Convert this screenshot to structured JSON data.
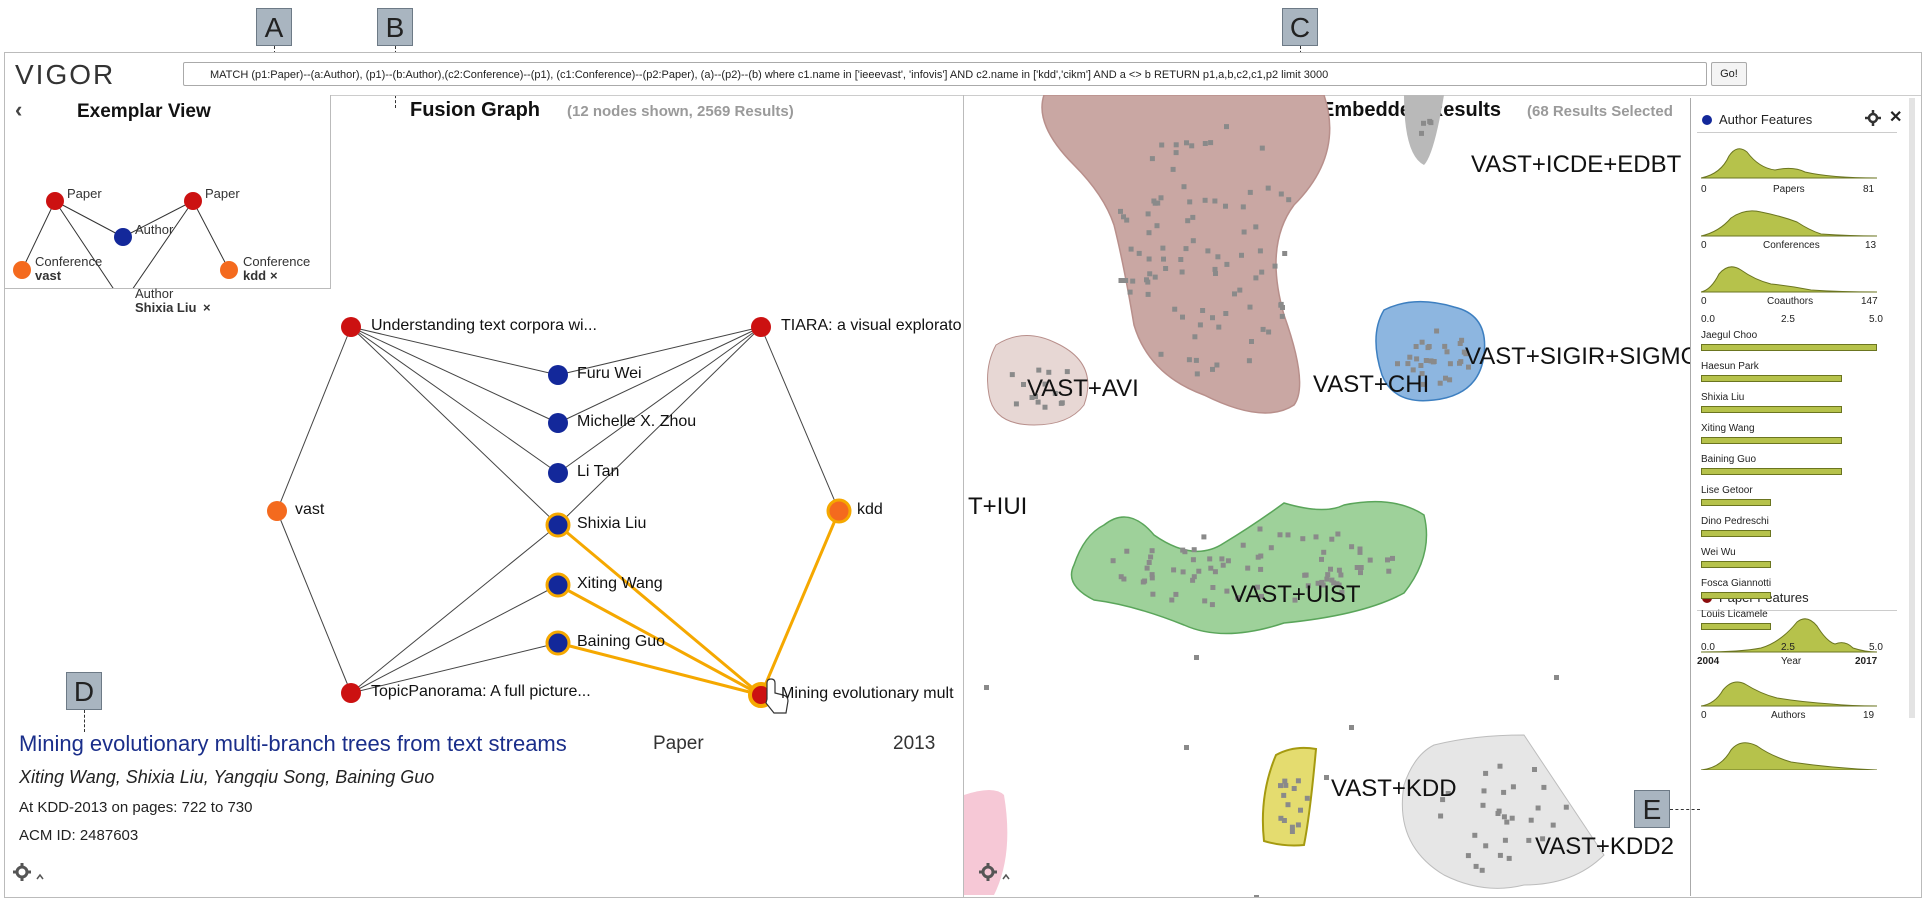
{
  "callouts": {
    "a": "A",
    "b": "B",
    "c": "C",
    "d": "D",
    "e": "E"
  },
  "app": {
    "logo": "VIGOR",
    "query": "MATCH (p1:Paper)--(a:Author), (p1)--(b:Author),(c2:Conference)--(p1), (c1:Conference)--(p2:Paper), (a)--(p2)--(b)  where c1.name in ['ieeevast', 'infovis'] AND c2.name in ['kdd','cikm'] AND a <> b  RETURN p1,a,b,c2,c1,p2 limit 3000",
    "go_label": "Go!"
  },
  "exemplar": {
    "back": "‹",
    "title": "Exemplar View",
    "labels": {
      "paper1": "Paper",
      "paper2": "Paper",
      "author1": "Author",
      "conf1_type": "Conference",
      "conf1_value": "vast",
      "conf2_type": "Conference",
      "conf2_value": "kdd",
      "author2_type": "Author",
      "author2_value": "Shixia Liu",
      "remove": "×"
    }
  },
  "fusion": {
    "title": "Fusion Graph",
    "subtitle": "(12 nodes shown, 2569 Results)",
    "nodes": {
      "p1": "Understanding text corpora wi...",
      "p2": "TIARA: a visual explorato",
      "p3": "TopicPanorama: A full picture...",
      "p4": "Mining evolutionary mult",
      "a1": "Furu Wei",
      "a2": "Michelle X. Zhou",
      "a3": "Li Tan",
      "a4": "Shixia Liu",
      "a5": "Xiting Wang",
      "a6": "Baining Guo",
      "c1": "vast",
      "c2": "kdd"
    }
  },
  "detail": {
    "title": "Mining evolutionary multi-branch trees from text streams",
    "type": "Paper",
    "year": "2013",
    "authors": "Xiting Wang, Shixia Liu, Yangqiu Song, Baining Guo",
    "venue": "At KDD-2013 on pages: 722 to 730",
    "acm": "ACM ID: 2487603"
  },
  "embedded": {
    "title": "Embedded Results",
    "subtitle": "(68 Results Selected",
    "clusters": {
      "icde": "VAST+ICDE+EDBT",
      "sigir": "VAST+SIGIR+SIGMO",
      "avi": "VAST+AVI",
      "chi": "VAST+CHI",
      "iui": "T+IUI",
      "uist": "VAST+UIST",
      "kdd": "VAST+KDD",
      "kdd2": "VAST+KDD2"
    }
  },
  "features": {
    "author_title": "Author Features",
    "paper_title": "Paper Features",
    "papers_axis": {
      "min": "0",
      "label": "Papers",
      "max": "81"
    },
    "conf_axis": {
      "min": "0",
      "label": "Conferences",
      "max": "13"
    },
    "coauth_axis": {
      "min": "0",
      "label": "Coauthors",
      "max": "147"
    },
    "bar_top_ticks": [
      "0.0",
      "2.5",
      "5.0"
    ],
    "bar_bottom_ticks": [
      "0.0",
      "2.5",
      "5.0"
    ],
    "bars": [
      {
        "name": "Jaegul Choo",
        "value": 5.0
      },
      {
        "name": "Haesun Park",
        "value": 4.0
      },
      {
        "name": "Shixia Liu",
        "value": 4.0
      },
      {
        "name": "Xiting Wang",
        "value": 4.0
      },
      {
        "name": "Baining Guo",
        "value": 4.0
      },
      {
        "name": "Lise Getoor",
        "value": 2.0
      },
      {
        "name": "Dino Pedreschi",
        "value": 2.0
      },
      {
        "name": "Wei Wu",
        "value": 2.0
      },
      {
        "name": "Fosca Giannotti",
        "value": 2.0
      },
      {
        "name": "Louis Licamele",
        "value": 2.0
      }
    ],
    "year_axis": {
      "min": "2004",
      "label": "Year",
      "max": "2017"
    },
    "authors_axis": {
      "min": "0",
      "label": "Authors",
      "max": "19"
    }
  },
  "colors": {
    "paper": "#cc1111",
    "author": "#13289a",
    "conference": "#f46a1e",
    "highlight": "#f5a800",
    "bar": "#b6c24b"
  }
}
